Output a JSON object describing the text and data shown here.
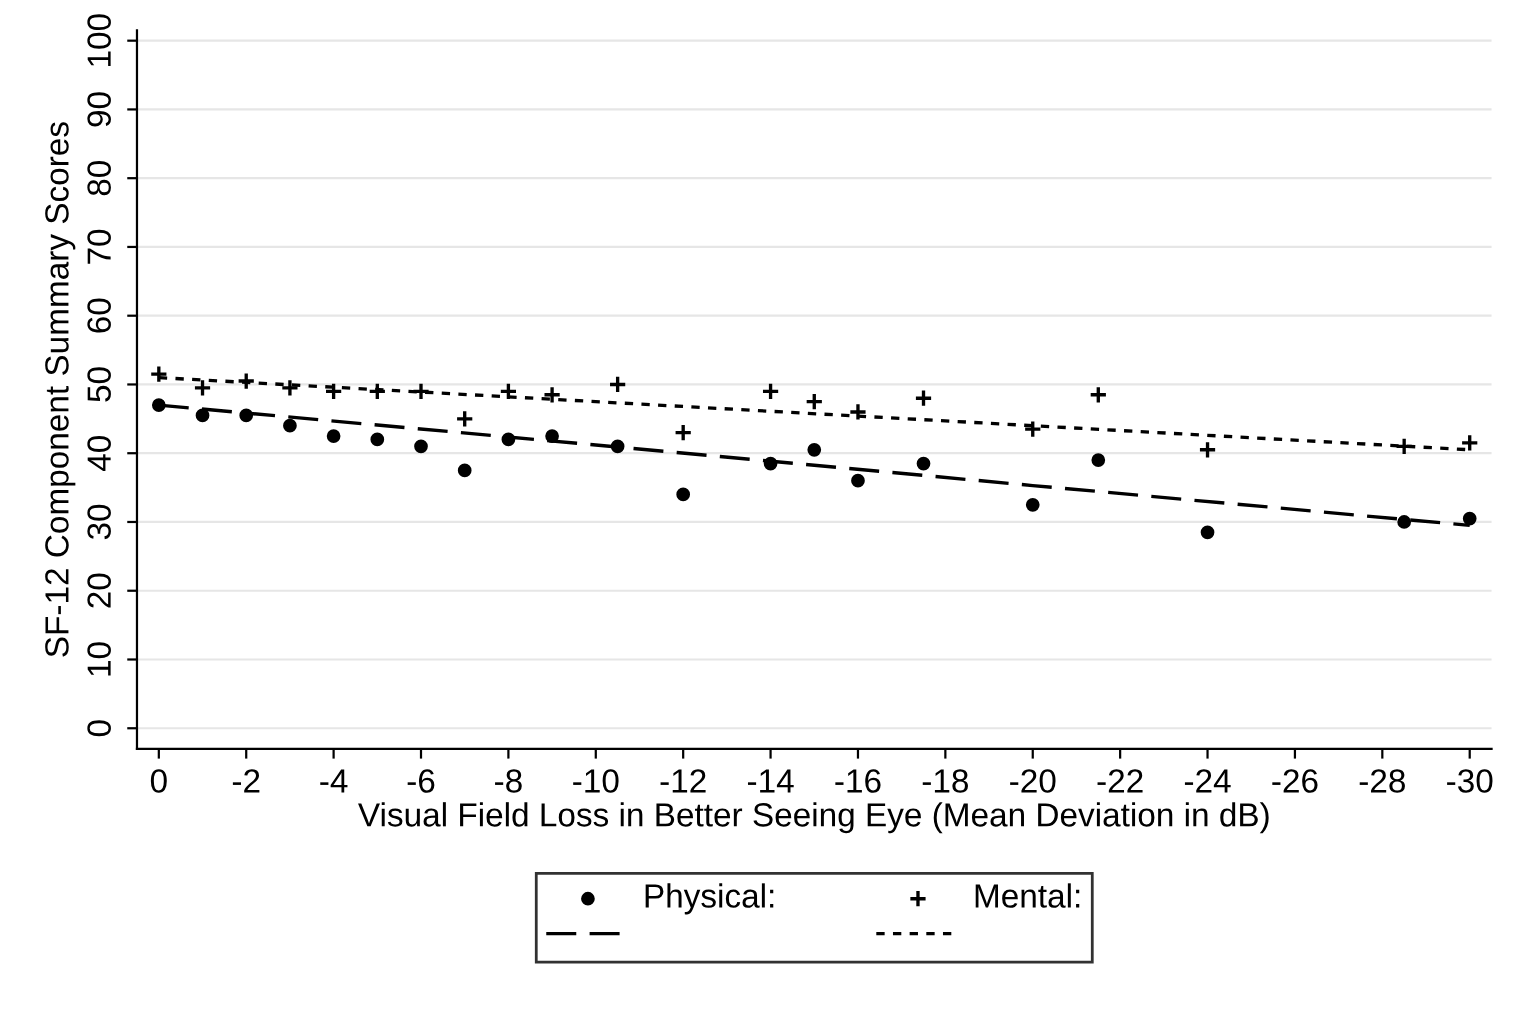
{
  "chart_data": {
    "type": "scatter",
    "xlabel": "Visual Field Loss in Better Seeing Eye (Mean Deviation in dB)",
    "ylabel": "SF-12 Component Summary Scores",
    "x": [
      0,
      -1,
      -2,
      -3,
      -4,
      -5,
      -6,
      -7,
      -8,
      -9,
      -10.5,
      -12,
      -14,
      -15,
      -16,
      -17.5,
      -20,
      -21.5,
      -24,
      -28.5,
      -30
    ],
    "series": [
      {
        "name": "Physical:",
        "color": "#000000",
        "marker": "circle",
        "values": [
          47,
          45.5,
          45.5,
          44,
          42.5,
          42,
          41,
          37.5,
          42,
          42.5,
          41,
          34,
          38.5,
          40.5,
          36,
          38.5,
          32.5,
          39,
          28.5,
          30,
          30.5
        ]
      },
      {
        "name": "Mental:",
        "color": "#000000",
        "marker": "cross",
        "values": [
          51.5,
          49.5,
          50.5,
          49.5,
          49,
          49,
          49,
          45,
          49,
          48.5,
          50,
          43,
          49,
          47.5,
          46,
          48,
          43.5,
          48.5,
          40.5,
          41,
          41.5
        ]
      },
      {
        "type": "line",
        "x": [
          0,
          -10,
          -20,
          -30
        ],
        "values": [
          47,
          41.2,
          35.3,
          29.5
        ],
        "color": "#000000",
        "line_style": "dashed"
      },
      {
        "type": "line",
        "x": [
          0,
          -10,
          -20,
          -30
        ],
        "values": [
          51,
          47.5,
          44,
          40.5
        ],
        "color": "#000000",
        "line_style": "dotted"
      }
    ],
    "xlim": [
      0.5,
      -30.5
    ],
    "ylim": [
      -3,
      101.5
    ],
    "xticks": [
      0,
      -2,
      -4,
      -6,
      -8,
      -10,
      -12,
      -14,
      -16,
      -18,
      -20,
      -22,
      -24,
      -26,
      -28,
      -30
    ],
    "yticks": [
      0,
      10,
      20,
      30,
      40,
      50,
      60,
      70,
      80,
      90,
      100
    ],
    "grid": "y",
    "legend": "bottom"
  }
}
